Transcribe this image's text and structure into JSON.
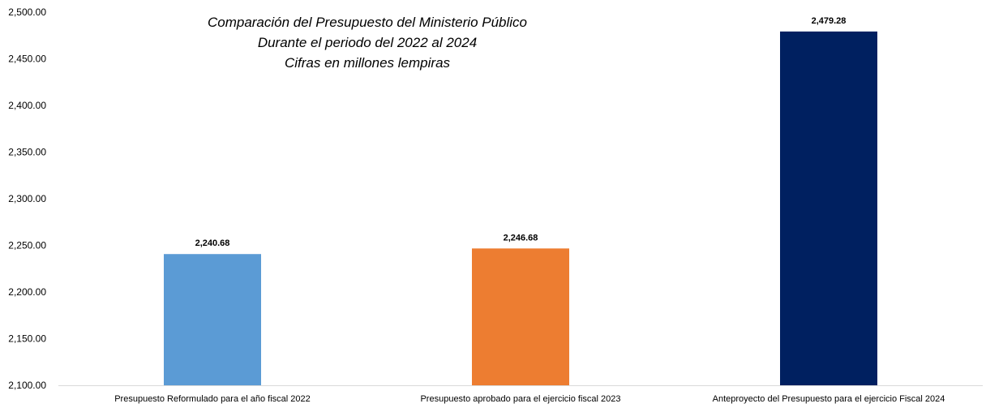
{
  "chart_data": {
    "type": "bar",
    "title_lines": [
      "Comparación del Presupuesto del Ministerio Público",
      "Durante el periodo del 2022 al 2024",
      "Cifras en millones lempiras"
    ],
    "categories": [
      "Presupuesto Reformulado para el año fiscal 2022",
      "Presupuesto aprobado para el ejercicio fiscal 2023",
      "Anteproyecto del Presupuesto para el ejercicio Fiscal 2024"
    ],
    "values": [
      2240.68,
      2246.68,
      2479.28
    ],
    "data_labels": [
      "2,240.68",
      "2,246.68",
      "2,479.28"
    ],
    "bar_colors": [
      "#5b9bd5",
      "#ed7d31",
      "#002060"
    ],
    "ylim": [
      2100,
      2500
    ],
    "yticks": [
      2100,
      2150,
      2200,
      2250,
      2300,
      2350,
      2400,
      2450,
      2500
    ],
    "ytick_labels": [
      "2,100.00",
      "2,150.00",
      "2,200.00",
      "2,250.00",
      "2,300.00",
      "2,350.00",
      "2,400.00",
      "2,450.00",
      "2,500.00"
    ],
    "grid": false,
    "legend": "none"
  }
}
